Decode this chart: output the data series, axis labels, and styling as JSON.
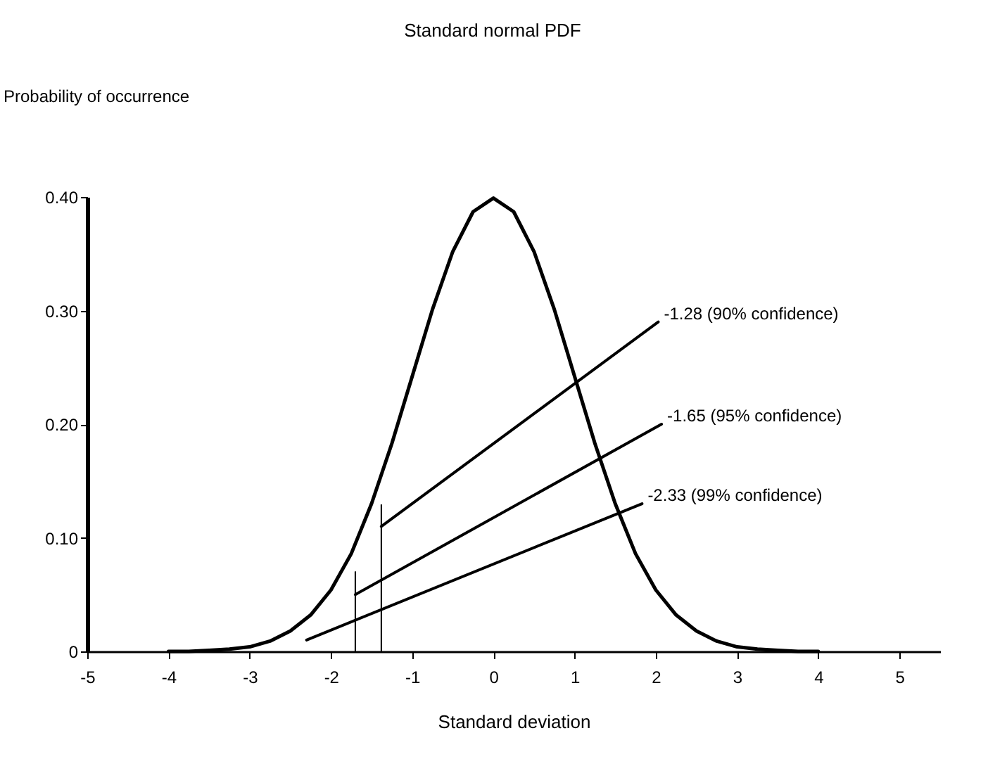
{
  "chart_data": {
    "type": "line",
    "title": "Standard normal PDF",
    "xlabel": "Standard deviation",
    "ylabel": "Probability of occurrence",
    "xlim": [
      -5,
      5.5
    ],
    "xticks": [
      -5,
      -4,
      -3,
      -2,
      -1,
      0,
      1,
      2,
      3,
      4,
      5
    ],
    "ylim": [
      0,
      0.4
    ],
    "yticks": [
      0,
      {
        "value": 0.1,
        "label": "0.10"
      },
      {
        "value": 0.2,
        "label": "0.20"
      },
      {
        "value": 0.3,
        "label": "0.30"
      },
      {
        "value": 0.4,
        "label": "0.40"
      }
    ],
    "grid": false,
    "marker": "none",
    "line_style": "solid",
    "series": [
      {
        "color": "#000000",
        "x": [
          -4,
          -3.75,
          -3.5,
          -3.25,
          -3,
          -2.75,
          -2.5,
          -2.25,
          -2,
          -1.75,
          -1.5,
          -1.25,
          -1,
          -0.75,
          -0.5,
          -0.25,
          0,
          0.25,
          0.5,
          0.75,
          1,
          1.25,
          1.5,
          1.75,
          2,
          2.25,
          2.5,
          2.75,
          3,
          3.25,
          3.5,
          3.75,
          4
        ],
        "values": [
          0,
          0,
          0.001,
          0.002,
          0.004,
          0.009,
          0.018,
          0.032,
          0.054,
          0.086,
          0.13,
          0.183,
          0.242,
          0.301,
          0.352,
          0.387,
          0.399,
          0.387,
          0.352,
          0.301,
          0.242,
          0.183,
          0.13,
          0.086,
          0.054,
          0.032,
          0.018,
          0.009,
          0.004,
          0.002,
          0.001,
          0,
          0
        ]
      },
      {
        "color": "#000000",
        "x": [
          -1.38,
          -1.38
        ],
        "values": [
          0,
          0.129
        ]
      },
      {
        "color": "#000000",
        "x": [
          -1.7,
          -1.7
        ],
        "values": [
          0,
          0.07
        ]
      },
      {
        "color": "#000000",
        "x": [
          -1.38,
          2.03
        ],
        "values": [
          0.11,
          0.29
        ]
      },
      {
        "color": "#000000",
        "x": [
          -1.7,
          2.07
        ],
        "values": [
          0.05,
          0.2
        ]
      },
      {
        "color": "#000000",
        "x": [
          -2.3,
          1.83
        ],
        "values": [
          0.01,
          0.13
        ]
      }
    ],
    "annotations": [
      {
        "text": "-1.28 (90% confidence)",
        "x": 2.03,
        "y": 0.29
      },
      {
        "text": "-1.65 (95% confidence)",
        "x": 2.07,
        "y": 0.2
      },
      {
        "text": "-2.33 (99% confidence)",
        "x": 1.83,
        "y": 0.13
      }
    ]
  }
}
